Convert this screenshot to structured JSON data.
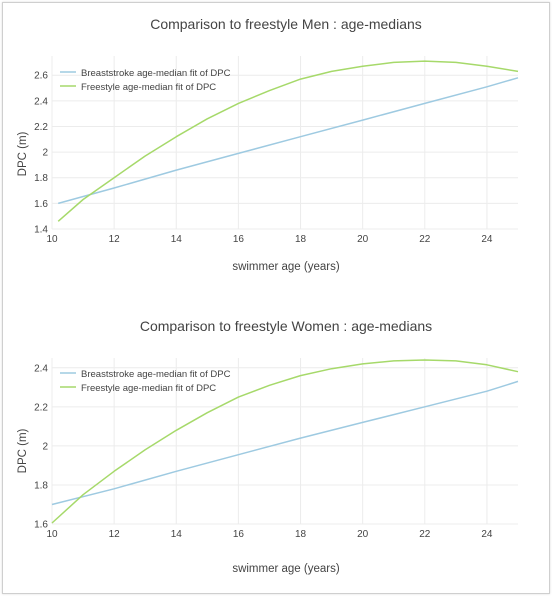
{
  "colors": {
    "breaststroke": "#9ecae1",
    "freestyle": "#a6d96a",
    "text": "#444444",
    "grid": "#ececec"
  },
  "chart_data": [
    {
      "type": "line",
      "title": "Comparison to freestyle Men : age-medians",
      "xlabel": "swimmer age (years)",
      "ylabel": "DPC (m)",
      "xlim": [
        10,
        25
      ],
      "ylim": [
        1.4,
        2.75
      ],
      "xticks": [
        "10",
        "12",
        "14",
        "16",
        "18",
        "20",
        "22",
        "24"
      ],
      "yticks": [
        "1.4",
        "1.6",
        "1.8",
        "2",
        "2.2",
        "2.4",
        "2.6"
      ],
      "grid": true,
      "legend_position": "top-left",
      "series": [
        {
          "name": "Breaststroke age-median fit of DPC",
          "color": "#9ecae1",
          "x": [
            10.2,
            12,
            14,
            16,
            18,
            20,
            22,
            24,
            25
          ],
          "y": [
            1.6,
            1.72,
            1.86,
            1.99,
            2.12,
            2.25,
            2.38,
            2.51,
            2.58
          ]
        },
        {
          "name": "Freestyle age-median fit of DPC",
          "color": "#a6d96a",
          "x": [
            10.2,
            11,
            12,
            13,
            14,
            15,
            16,
            17,
            18,
            19,
            20,
            21,
            22,
            23,
            24,
            25
          ],
          "y": [
            1.46,
            1.63,
            1.8,
            1.97,
            2.12,
            2.26,
            2.38,
            2.48,
            2.57,
            2.63,
            2.67,
            2.7,
            2.71,
            2.7,
            2.67,
            2.63
          ]
        }
      ]
    },
    {
      "type": "line",
      "title": "Comparison to freestyle Women : age-medians",
      "xlabel": "swimmer age (years)",
      "ylabel": "DPC (m)",
      "xlim": [
        10,
        25
      ],
      "ylim": [
        1.6,
        2.45
      ],
      "xticks": [
        "10",
        "12",
        "14",
        "16",
        "18",
        "20",
        "22",
        "24"
      ],
      "yticks": [
        "1.6",
        "1.8",
        "2",
        "2.2",
        "2.4"
      ],
      "grid": true,
      "legend_position": "top-left",
      "series": [
        {
          "name": "Breaststroke age-median fit of DPC",
          "color": "#9ecae1",
          "x": [
            10,
            12,
            14,
            16,
            18,
            20,
            22,
            24,
            25
          ],
          "y": [
            1.7,
            1.78,
            1.87,
            1.955,
            2.04,
            2.12,
            2.2,
            2.28,
            2.33
          ]
        },
        {
          "name": "Freestyle age-median fit of DPC",
          "color": "#a6d96a",
          "x": [
            10,
            11,
            12,
            13,
            14,
            15,
            16,
            17,
            18,
            19,
            20,
            21,
            22,
            23,
            24,
            25
          ],
          "y": [
            1.605,
            1.75,
            1.87,
            1.98,
            2.08,
            2.17,
            2.25,
            2.31,
            2.36,
            2.395,
            2.42,
            2.435,
            2.44,
            2.435,
            2.415,
            2.38
          ]
        }
      ]
    }
  ]
}
